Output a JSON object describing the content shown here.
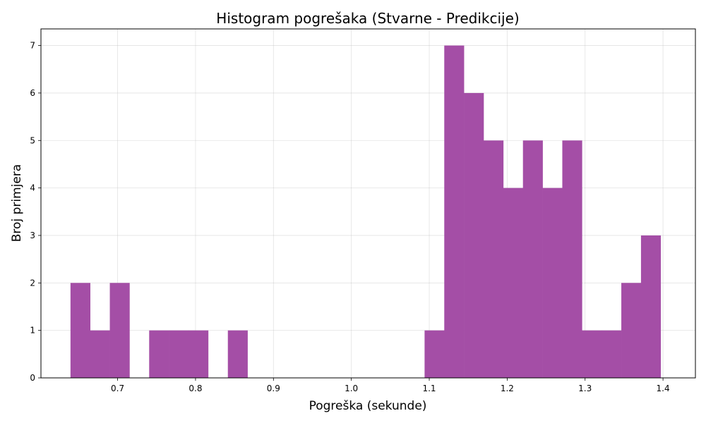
{
  "chart_data": {
    "type": "bar",
    "title": "Histogram pogrešaka (Stvarne - Predikcije)",
    "xlabel": "Pogreška (sekunde)",
    "ylabel": "Broj primjera",
    "xlim": [
      0.6016,
      1.4416
    ],
    "ylim": [
      0,
      7.35
    ],
    "grid": true,
    "colors": {
      "bar": "#a44ea6"
    },
    "bin_width": 0.02525,
    "bins": [
      {
        "x0": 0.6395,
        "count": 2
      },
      {
        "x0": 0.66475,
        "count": 1
      },
      {
        "x0": 0.69,
        "count": 2
      },
      {
        "x0": 0.71525,
        "count": 0
      },
      {
        "x0": 0.7405,
        "count": 1
      },
      {
        "x0": 0.76575,
        "count": 1
      },
      {
        "x0": 0.791,
        "count": 1
      },
      {
        "x0": 0.81625,
        "count": 0
      },
      {
        "x0": 0.8415,
        "count": 1
      },
      {
        "x0": 0.86675,
        "count": 0
      },
      {
        "x0": 0.892,
        "count": 0
      },
      {
        "x0": 0.91725,
        "count": 0
      },
      {
        "x0": 0.9425,
        "count": 0
      },
      {
        "x0": 0.96775,
        "count": 0
      },
      {
        "x0": 0.993,
        "count": 0
      },
      {
        "x0": 1.01825,
        "count": 0
      },
      {
        "x0": 1.0435,
        "count": 0
      },
      {
        "x0": 1.06875,
        "count": 0
      },
      {
        "x0": 1.094,
        "count": 1
      },
      {
        "x0": 1.11925,
        "count": 7
      },
      {
        "x0": 1.1445,
        "count": 6
      },
      {
        "x0": 1.16975,
        "count": 5
      },
      {
        "x0": 1.195,
        "count": 4
      },
      {
        "x0": 1.22025,
        "count": 5
      },
      {
        "x0": 1.2455,
        "count": 4
      },
      {
        "x0": 1.27075,
        "count": 5
      },
      {
        "x0": 1.296,
        "count": 1
      },
      {
        "x0": 1.32125,
        "count": 1
      },
      {
        "x0": 1.3465,
        "count": 2
      },
      {
        "x0": 1.37175,
        "count": 3
      }
    ],
    "x_ticks": [
      {
        "value": 0.7,
        "label": "0.7"
      },
      {
        "value": 0.8,
        "label": "0.8"
      },
      {
        "value": 0.9,
        "label": "0.9"
      },
      {
        "value": 1.0,
        "label": "1.0"
      },
      {
        "value": 1.1,
        "label": "1.1"
      },
      {
        "value": 1.2,
        "label": "1.2"
      },
      {
        "value": 1.3,
        "label": "1.3"
      },
      {
        "value": 1.4,
        "label": "1.4"
      }
    ],
    "y_ticks": [
      {
        "value": 0,
        "label": "0"
      },
      {
        "value": 1,
        "label": "1"
      },
      {
        "value": 2,
        "label": "2"
      },
      {
        "value": 3,
        "label": "3"
      },
      {
        "value": 4,
        "label": "4"
      },
      {
        "value": 5,
        "label": "5"
      },
      {
        "value": 6,
        "label": "6"
      },
      {
        "value": 7,
        "label": "7"
      }
    ]
  }
}
